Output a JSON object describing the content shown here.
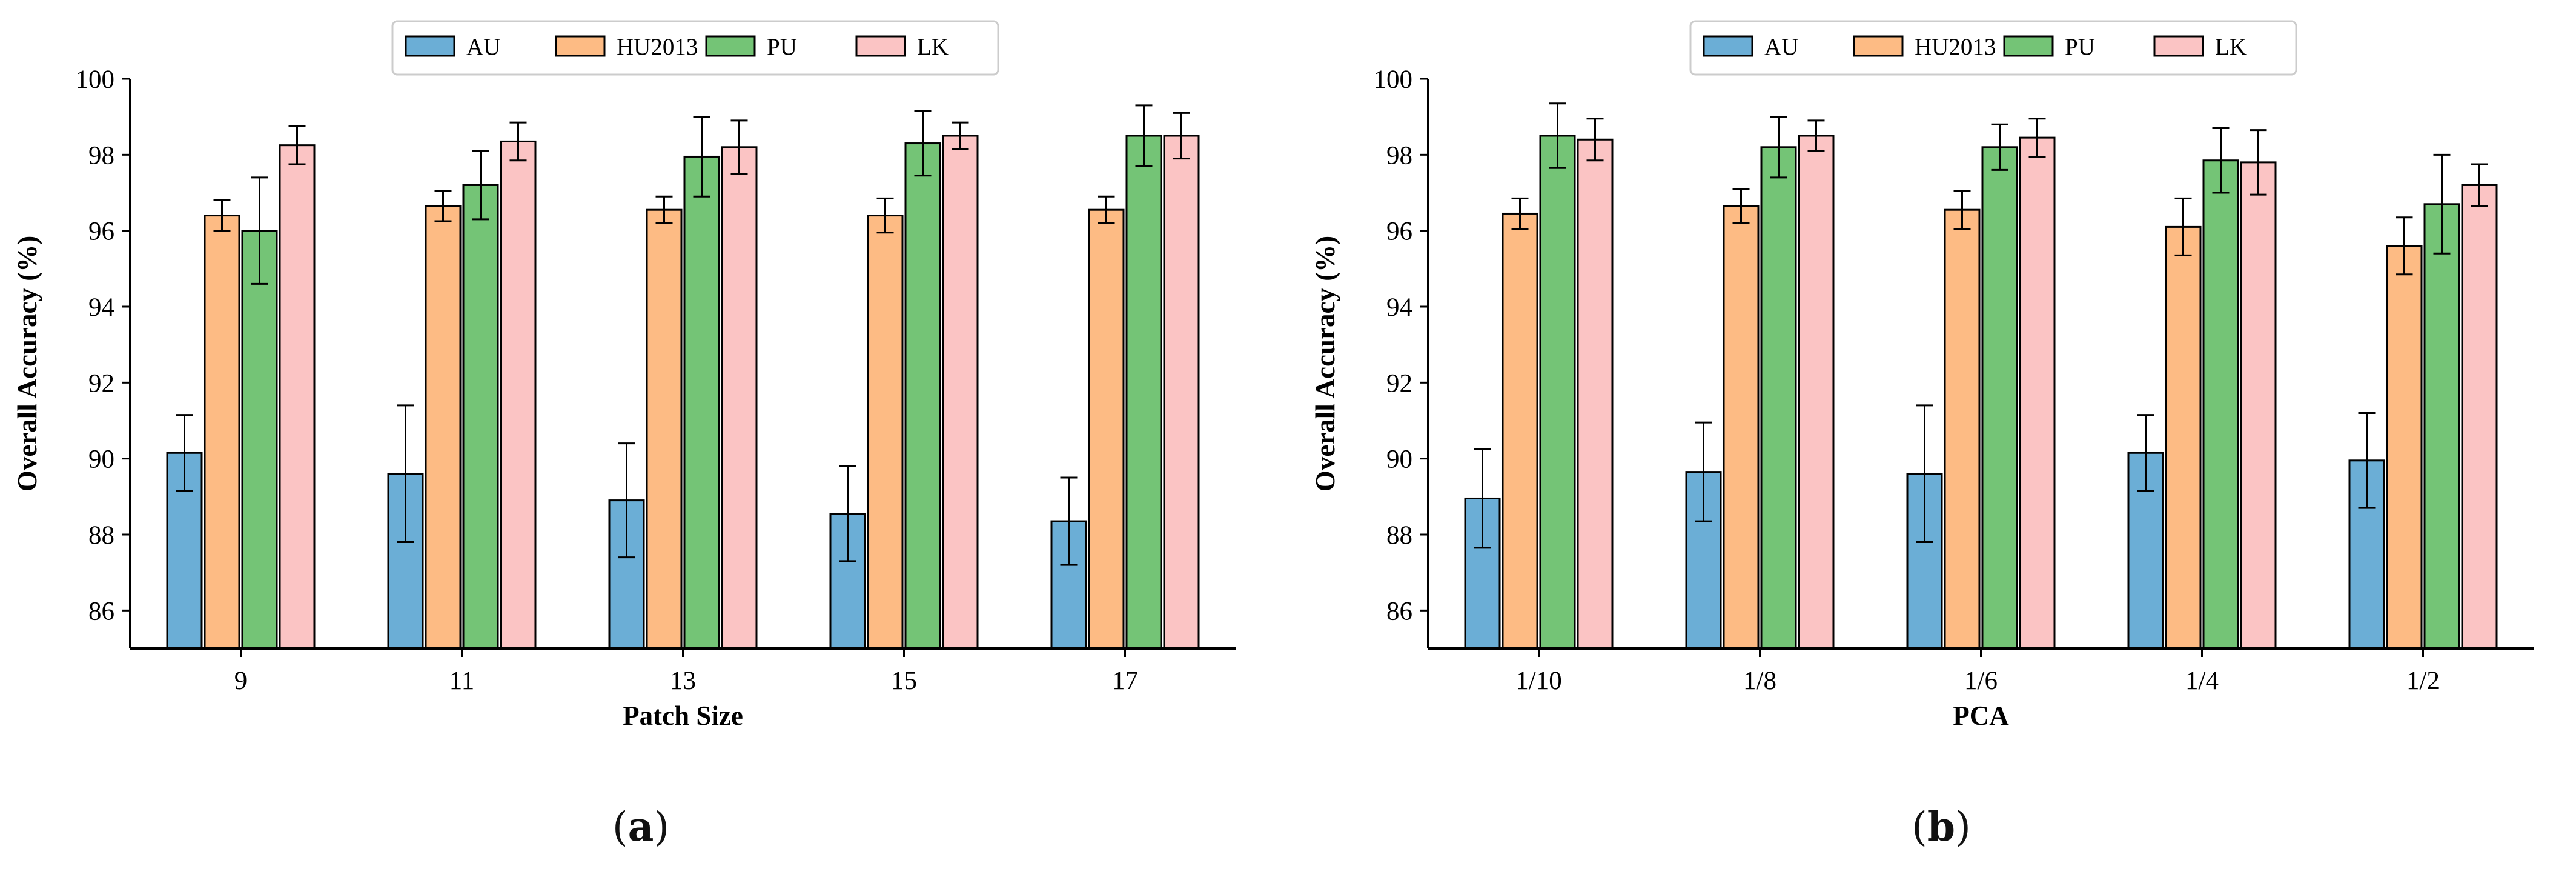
{
  "colors": {
    "AU": "#6baed6",
    "HU2013": "#fdbb84",
    "PU": "#74c476",
    "LK": "#fbc4c4",
    "outline": "#000000"
  },
  "captions": {
    "a": "a",
    "b": "b"
  },
  "chart_data": [
    {
      "type": "bar",
      "xlabel": "Patch Size",
      "ylabel": "Overall Accuracy (%)",
      "ylim": [
        85,
        100
      ],
      "yticks": [
        86,
        88,
        90,
        92,
        94,
        96,
        98,
        100
      ],
      "grid": false,
      "legend": "top-center",
      "categories": [
        "9",
        "11",
        "13",
        "15",
        "17"
      ],
      "series": [
        {
          "name": "AU",
          "values": [
            90.15,
            89.6,
            88.9,
            88.55,
            88.35
          ],
          "errors": [
            1.0,
            1.8,
            1.5,
            1.25,
            1.15
          ]
        },
        {
          "name": "HU2013",
          "values": [
            96.4,
            96.65,
            96.55,
            96.4,
            96.55
          ],
          "errors": [
            0.4,
            0.4,
            0.35,
            0.45,
            0.35
          ]
        },
        {
          "name": "PU",
          "values": [
            96.0,
            97.2,
            97.95,
            98.3,
            98.5
          ],
          "errors": [
            1.4,
            0.9,
            1.05,
            0.85,
            0.8
          ]
        },
        {
          "name": "LK",
          "values": [
            98.25,
            98.35,
            98.2,
            98.5,
            98.5
          ],
          "errors": [
            0.5,
            0.5,
            0.7,
            0.35,
            0.6
          ]
        }
      ]
    },
    {
      "type": "bar",
      "xlabel": "PCA",
      "ylabel": "Overall Accuracy (%)",
      "ylim": [
        85,
        100
      ],
      "yticks": [
        86,
        88,
        90,
        92,
        94,
        96,
        98,
        100
      ],
      "grid": false,
      "legend": "top-center",
      "categories": [
        "1/10",
        "1/8",
        "1/6",
        "1/4",
        "1/2"
      ],
      "series": [
        {
          "name": "AU",
          "values": [
            88.95,
            89.65,
            89.6,
            90.15,
            89.95
          ],
          "errors": [
            1.3,
            1.3,
            1.8,
            1.0,
            1.25
          ]
        },
        {
          "name": "HU2013",
          "values": [
            96.45,
            96.65,
            96.55,
            96.1,
            95.6
          ],
          "errors": [
            0.4,
            0.45,
            0.5,
            0.75,
            0.75
          ]
        },
        {
          "name": "PU",
          "values": [
            98.5,
            98.2,
            98.2,
            97.85,
            96.7
          ],
          "errors": [
            0.85,
            0.8,
            0.6,
            0.85,
            1.3
          ]
        },
        {
          "name": "LK",
          "values": [
            98.4,
            98.5,
            98.45,
            97.8,
            97.2
          ],
          "errors": [
            0.55,
            0.4,
            0.5,
            0.85,
            0.55
          ]
        }
      ]
    }
  ]
}
